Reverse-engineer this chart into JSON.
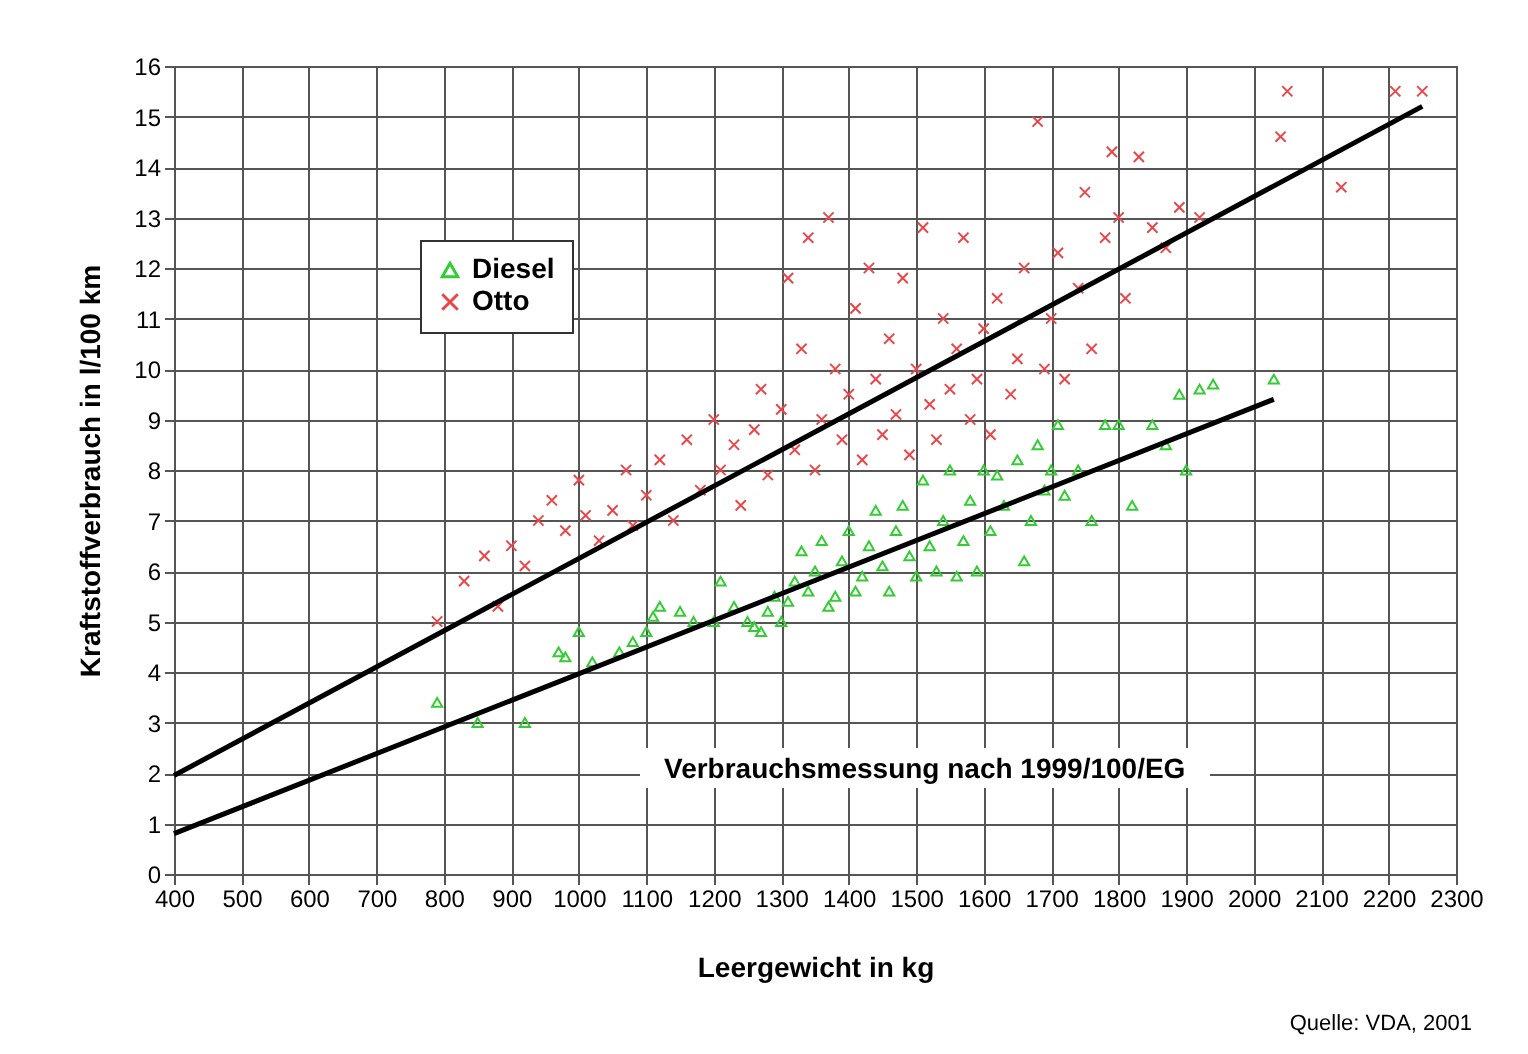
{
  "chart_data": {
    "type": "scatter",
    "xlabel": "Leergewicht in kg",
    "ylabel": "Kraftstoffverbrauch in l/100 km",
    "annotations": [
      "Verbrauchsmessung nach 1999/100/EG",
      "Quelle: VDA, 2001"
    ],
    "xlim": [
      400,
      2300
    ],
    "xticks": [
      400,
      500,
      600,
      700,
      800,
      900,
      1000,
      1100,
      1200,
      1300,
      1400,
      1500,
      1600,
      1700,
      1800,
      1900,
      2000,
      2100,
      2200,
      2300
    ],
    "ylim": [
      0,
      16
    ],
    "yticks": [
      0,
      1,
      2,
      3,
      4,
      5,
      6,
      7,
      8,
      9,
      10,
      11,
      12,
      13,
      14,
      15,
      16
    ],
    "grid": true,
    "legend": "top left",
    "series": [
      {
        "name": "Diesel",
        "color": "#33cc33",
        "marker": "triangle",
        "x": [
          790,
          850,
          920,
          970,
          980,
          1000,
          1020,
          1060,
          1080,
          1100,
          1110,
          1120,
          1150,
          1170,
          1200,
          1210,
          1230,
          1250,
          1260,
          1270,
          1280,
          1290,
          1300,
          1310,
          1320,
          1330,
          1340,
          1350,
          1360,
          1370,
          1380,
          1390,
          1400,
          1410,
          1420,
          1430,
          1440,
          1450,
          1460,
          1470,
          1480,
          1490,
          1500,
          1510,
          1520,
          1530,
          1540,
          1550,
          1560,
          1570,
          1580,
          1590,
          1600,
          1610,
          1620,
          1630,
          1650,
          1660,
          1670,
          1680,
          1690,
          1700,
          1710,
          1720,
          1740,
          1760,
          1780,
          1800,
          1820,
          1850,
          1870,
          1890,
          1900,
          1920,
          1940,
          2030
        ],
        "values": [
          3.4,
          3.0,
          3.0,
          4.4,
          4.3,
          4.8,
          4.2,
          4.4,
          4.6,
          4.8,
          5.1,
          5.3,
          5.2,
          5.0,
          5.0,
          5.8,
          5.3,
          5.0,
          4.9,
          4.8,
          5.2,
          5.5,
          5.0,
          5.4,
          5.8,
          6.4,
          5.6,
          6.0,
          6.6,
          5.3,
          5.5,
          6.2,
          6.8,
          5.6,
          5.9,
          6.5,
          7.2,
          6.1,
          5.6,
          6.8,
          7.3,
          6.3,
          5.9,
          7.8,
          6.5,
          6.0,
          7.0,
          8.0,
          5.9,
          6.6,
          7.4,
          6.0,
          8.0,
          6.8,
          7.9,
          7.3,
          8.2,
          6.2,
          7.0,
          8.5,
          7.6,
          8.0,
          8.9,
          7.5,
          8.0,
          7.0,
          8.9,
          8.9,
          7.3,
          8.9,
          8.5,
          9.5,
          8.0,
          9.6,
          9.7,
          9.8
        ]
      },
      {
        "name": "Otto",
        "color": "#e8474a",
        "marker": "cross",
        "x": [
          790,
          830,
          860,
          880,
          900,
          920,
          940,
          960,
          980,
          1000,
          1010,
          1030,
          1050,
          1070,
          1080,
          1100,
          1120,
          1140,
          1160,
          1180,
          1200,
          1210,
          1230,
          1240,
          1260,
          1270,
          1280,
          1300,
          1310,
          1320,
          1330,
          1340,
          1350,
          1360,
          1370,
          1380,
          1390,
          1400,
          1410,
          1420,
          1430,
          1440,
          1450,
          1460,
          1470,
          1480,
          1490,
          1500,
          1510,
          1520,
          1530,
          1540,
          1550,
          1560,
          1570,
          1580,
          1590,
          1600,
          1610,
          1620,
          1640,
          1650,
          1660,
          1680,
          1690,
          1700,
          1710,
          1720,
          1740,
          1750,
          1760,
          1780,
          1790,
          1800,
          1810,
          1830,
          1850,
          1870,
          1890,
          1920,
          2040,
          2050,
          2130,
          2210,
          2250
        ],
        "values": [
          5.0,
          5.8,
          6.3,
          5.3,
          6.5,
          6.1,
          7.0,
          7.4,
          6.8,
          7.8,
          7.1,
          6.6,
          7.2,
          8.0,
          6.9,
          7.5,
          8.2,
          7.0,
          8.6,
          7.6,
          9.0,
          8.0,
          8.5,
          7.3,
          8.8,
          9.6,
          7.9,
          9.2,
          11.8,
          8.4,
          10.4,
          12.6,
          8.0,
          9.0,
          13.0,
          10.0,
          8.6,
          9.5,
          11.2,
          8.2,
          12.0,
          9.8,
          8.7,
          10.6,
          9.1,
          11.8,
          8.3,
          10.0,
          12.8,
          9.3,
          8.6,
          11.0,
          9.6,
          10.4,
          12.6,
          9.0,
          9.8,
          10.8,
          8.7,
          11.4,
          9.5,
          10.2,
          12.0,
          14.9,
          10.0,
          11.0,
          12.3,
          9.8,
          11.6,
          13.5,
          10.4,
          12.6,
          14.3,
          13.0,
          11.4,
          14.2,
          12.8,
          12.4,
          13.2,
          13.0,
          14.6,
          15.5,
          13.6,
          15.5,
          15.5
        ]
      },
      {
        "type": "line",
        "color": "#000000",
        "x": [
          400,
          2250
        ],
        "values": [
          1.95,
          15.2
        ]
      },
      {
        "type": "line",
        "color": "#000000",
        "x": [
          400,
          2030
        ],
        "values": [
          0.8,
          9.4
        ]
      }
    ]
  }
}
